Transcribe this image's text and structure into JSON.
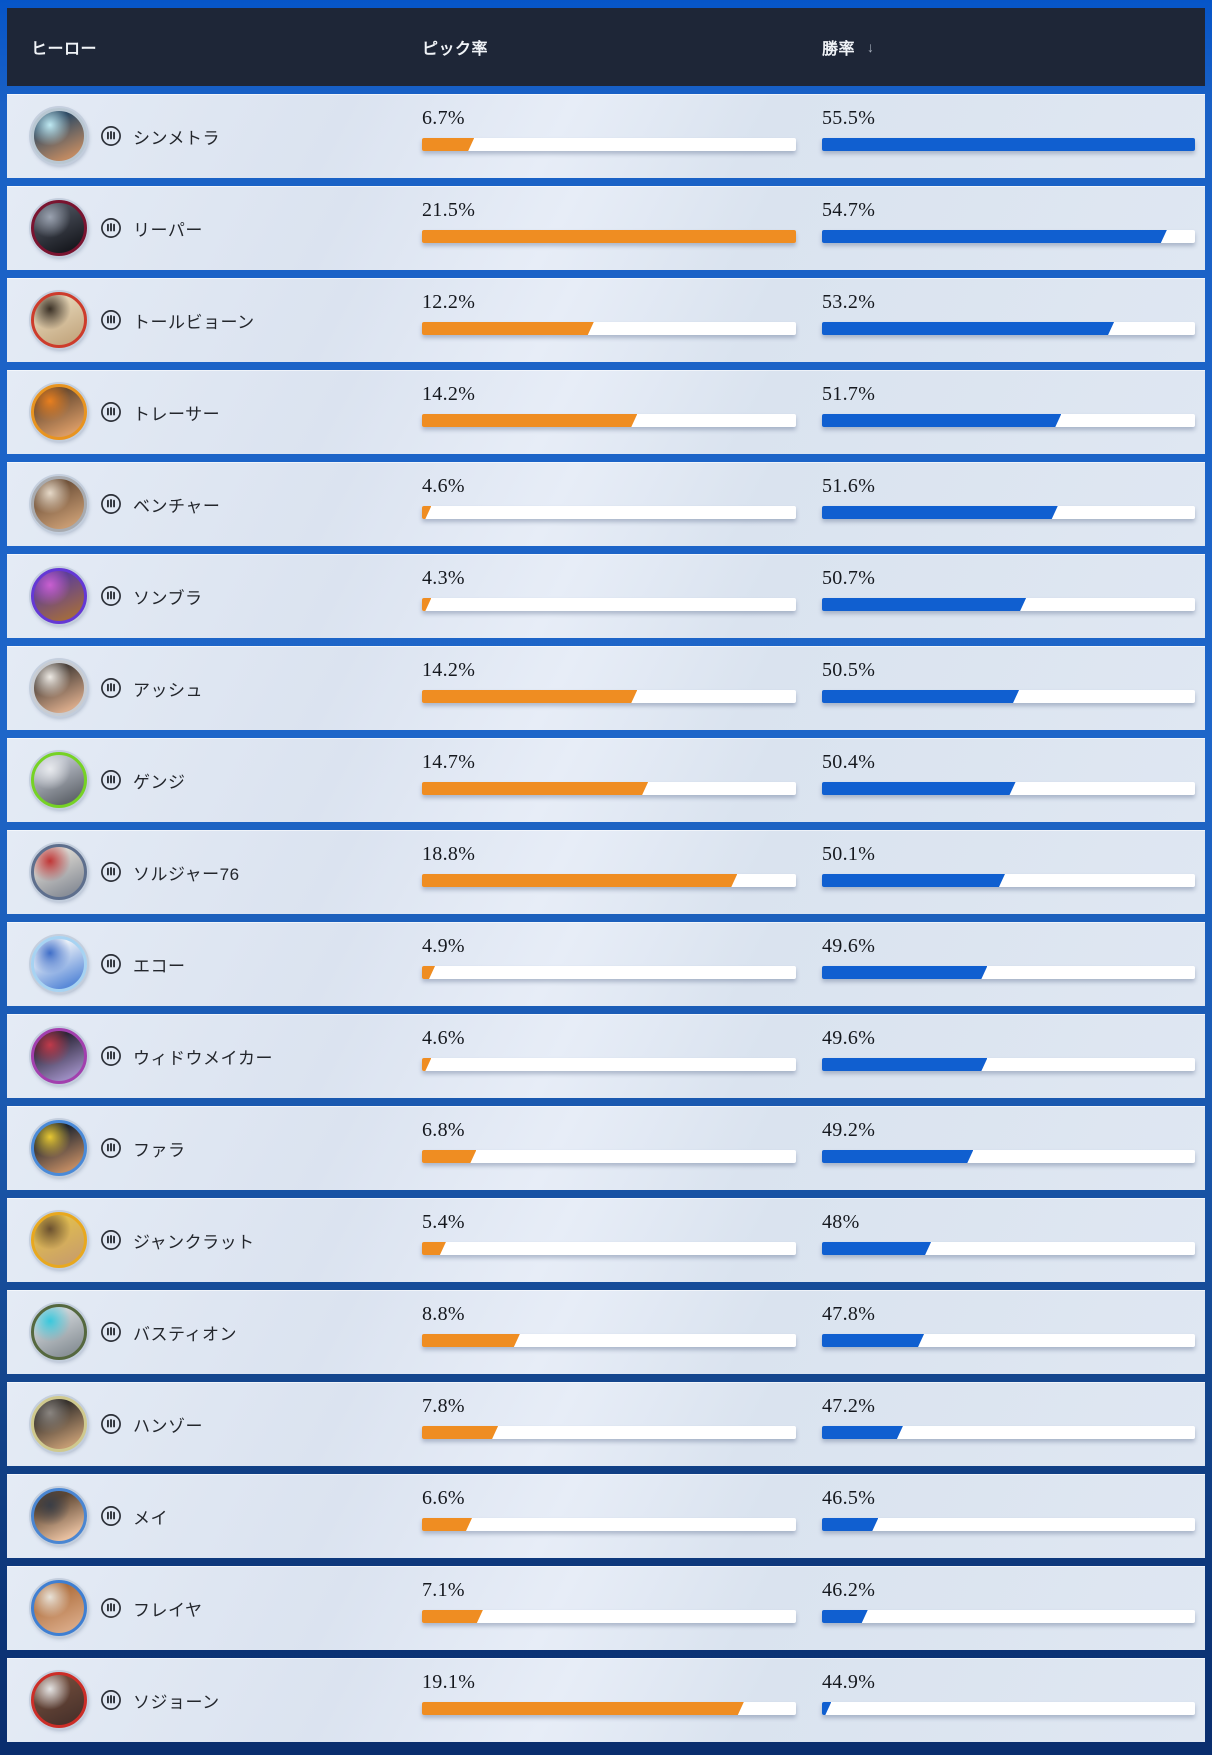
{
  "header": {
    "hero_label": "ヒーロー",
    "pick_label": "ピック率",
    "win_label": "勝率",
    "sort_icon": "↓"
  },
  "colors": {
    "pick_bar": "#ef8d22",
    "win_bar": "#105fd0",
    "header_bg": "#1e2637",
    "row_bg": "#dfe7f2",
    "frame_blue_top": "#0655c8",
    "frame_navy_bottom": "#0a2e6e"
  },
  "bar_scale": {
    "pick": {
      "min": 4.3,
      "max": 21.5
    },
    "win": {
      "min": 44.9,
      "max": 55.5
    }
  },
  "chart_data": {
    "type": "table",
    "columns": [
      "ヒーロー",
      "ピック率",
      "勝率"
    ],
    "sorted_by": "勝率 descending",
    "rows": [
      {
        "name": "シンメトラ",
        "pick": 6.7,
        "pick_display": "6.7%",
        "win": 55.5,
        "win_display": "55.5%",
        "avatar": {
          "ring": "#b9c7d2",
          "c1": "#2e4a63",
          "c2": "#c08a62",
          "c3": "#bfe9f2"
        }
      },
      {
        "name": "リーパー",
        "pick": 21.5,
        "pick_display": "21.5%",
        "win": 54.7,
        "win_display": "54.7%",
        "avatar": {
          "ring": "#7a1430",
          "c1": "#494e59",
          "c2": "#181a20",
          "c3": "#9aa2b0"
        }
      },
      {
        "name": "トールビョーン",
        "pick": 12.2,
        "pick_display": "12.2%",
        "win": 53.2,
        "win_display": "53.2%",
        "avatar": {
          "ring": "#cd3c2c",
          "c1": "#e3d3b4",
          "c2": "#c5a982",
          "c3": "#3a3025"
        }
      },
      {
        "name": "トレーサー",
        "pick": 14.2,
        "pick_display": "14.2%",
        "win": 51.7,
        "win_display": "51.7%",
        "avatar": {
          "ring": "#e89420",
          "c1": "#6b4c32",
          "c2": "#d99b66",
          "c3": "#e87f1f"
        }
      },
      {
        "name": "ベンチャー",
        "pick": 4.6,
        "pick_display": "4.6%",
        "win": 51.6,
        "win_display": "51.6%",
        "avatar": {
          "ring": "#a8abb0",
          "c1": "#70523a",
          "c2": "#c79b72",
          "c3": "#e6d9c8"
        }
      },
      {
        "name": "ソンブラ",
        "pick": 4.3,
        "pick_display": "4.3%",
        "win": 50.7,
        "win_display": "50.7%",
        "avatar": {
          "ring": "#6438d5",
          "c1": "#5e3f96",
          "c2": "#a06a42",
          "c3": "#c95fd0"
        }
      },
      {
        "name": "アッシュ",
        "pick": 14.2,
        "pick_display": "14.2%",
        "win": 50.5,
        "win_display": "50.5%",
        "avatar": {
          "ring": "#c8ccd2",
          "c1": "#4a4039",
          "c2": "#d8aa8a",
          "c3": "#eeeae4"
        }
      },
      {
        "name": "ゲンジ",
        "pick": 14.7,
        "pick_display": "14.7%",
        "win": 50.4,
        "win_display": "50.4%",
        "avatar": {
          "ring": "#76d225",
          "c1": "#b9bec8",
          "c2": "#62676e",
          "c3": "#e8eaee"
        }
      },
      {
        "name": "ソルジャー76",
        "pick": 18.8,
        "pick_display": "18.8%",
        "win": 50.1,
        "win_display": "50.1%",
        "avatar": {
          "ring": "#5e6f8d",
          "c1": "#d8d5cf",
          "c2": "#8a8f98",
          "c3": "#c03636"
        }
      },
      {
        "name": "エコー",
        "pick": 4.9,
        "pick_display": "4.9%",
        "win": 49.6,
        "win_display": "49.6%",
        "avatar": {
          "ring": "#a7d3f2",
          "c1": "#eaf0f8",
          "c2": "#5a8ad8",
          "c3": "#3f6ec8"
        }
      },
      {
        "name": "ウィドウメイカー",
        "pick": 4.6,
        "pick_display": "4.6%",
        "win": 49.6,
        "win_display": "49.6%",
        "avatar": {
          "ring": "#a23fae",
          "c1": "#2c2638",
          "c2": "#9b8cc0",
          "c3": "#c03a4a"
        }
      },
      {
        "name": "ファラ",
        "pick": 6.8,
        "pick_display": "6.8%",
        "win": 49.2,
        "win_display": "49.2%",
        "avatar": {
          "ring": "#4a8ad8",
          "c1": "#20262f",
          "c2": "#bf8a62",
          "c3": "#e8c832"
        }
      },
      {
        "name": "ジャンクラット",
        "pick": 5.4,
        "pick_display": "5.4%",
        "win": 48,
        "win_display": "48%",
        "avatar": {
          "ring": "#e8a81f",
          "c1": "#e0bc50",
          "c2": "#caa068",
          "c3": "#6a5030"
        }
      },
      {
        "name": "バスティオン",
        "pick": 8.8,
        "pick_display": "8.8%",
        "win": 47.8,
        "win_display": "47.8%",
        "avatar": {
          "ring": "#55683f",
          "c1": "#cdd2d6",
          "c2": "#8a9298",
          "c3": "#39c8dc"
        }
      },
      {
        "name": "ハンゾー",
        "pick": 7.8,
        "pick_display": "7.8%",
        "win": 47.2,
        "win_display": "47.2%",
        "avatar": {
          "ring": "#cfc98e",
          "c1": "#35302c",
          "c2": "#c29a72",
          "c3": "#8a8580"
        }
      },
      {
        "name": "メイ",
        "pick": 6.6,
        "pick_display": "6.6%",
        "win": 46.5,
        "win_display": "46.5%",
        "avatar": {
          "ring": "#4a86d2",
          "c1": "#5e4733",
          "c2": "#e8c0a0",
          "c3": "#3a3e46"
        }
      },
      {
        "name": "フレイヤ",
        "pick": 7.1,
        "pick_display": "7.1%",
        "win": 46.2,
        "win_display": "46.2%",
        "avatar": {
          "ring": "#3f7fd2",
          "c1": "#b0703f",
          "c2": "#d8a885",
          "c3": "#e8e2d8"
        }
      },
      {
        "name": "ソジョーン",
        "pick": 19.1,
        "pick_display": "19.1%",
        "win": 44.9,
        "win_display": "44.9%",
        "avatar": {
          "ring": "#cc2e28",
          "c1": "#6e4a3a",
          "c2": "#4a332c",
          "c3": "#e4e4e4"
        }
      }
    ]
  }
}
